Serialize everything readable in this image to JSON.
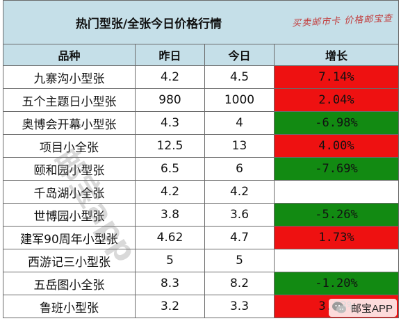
{
  "title": "热门型张/全张今日价格行情",
  "watermark_top": "买卖邮市卡 价格邮宝查",
  "watermark_diag": "邮宝app",
  "badge_label": "邮宝APP",
  "columns": [
    "品种",
    "昨日",
    "今日",
    "增长"
  ],
  "rows": [
    {
      "name": "九寨沟小型张",
      "yesterday": "4.2",
      "today": "4.5",
      "gain": "7.14%",
      "trend": "up"
    },
    {
      "name": "五个主题日小型张",
      "yesterday": "980",
      "today": "1000",
      "gain": "2.04%",
      "trend": "up"
    },
    {
      "name": "奥博会开幕小型张",
      "yesterday": "4.3",
      "today": "4",
      "gain": "-6.98%",
      "trend": "down"
    },
    {
      "name": "项目小全张",
      "yesterday": "12.5",
      "today": "13",
      "gain": "4.00%",
      "trend": "up"
    },
    {
      "name": "颐和园小型张",
      "yesterday": "6.5",
      "today": "6",
      "gain": "-7.69%",
      "trend": "down"
    },
    {
      "name": "千岛湖小全张",
      "yesterday": "4.2",
      "today": "4.2",
      "gain": "",
      "trend": "flat"
    },
    {
      "name": "世博园小型张",
      "yesterday": "3.8",
      "today": "3.6",
      "gain": "-5.26%",
      "trend": "down"
    },
    {
      "name": "建军90周年小型张",
      "yesterday": "4.62",
      "today": "4.7",
      "gain": "1.73%",
      "trend": "up"
    },
    {
      "name": "西游记三小型张",
      "yesterday": "5",
      "today": "5",
      "gain": "",
      "trend": "flat"
    },
    {
      "name": "五岳图小全张",
      "yesterday": "8.3",
      "today": "8.2",
      "gain": "-1.20%",
      "trend": "down"
    },
    {
      "name": "鲁班小型张",
      "yesterday": "3.2",
      "today": "3.3",
      "gain": "3.13%",
      "trend": "up"
    }
  ],
  "colors": {
    "up": "#ee1111",
    "down": "#128a12",
    "header": "#c5dfe8"
  }
}
